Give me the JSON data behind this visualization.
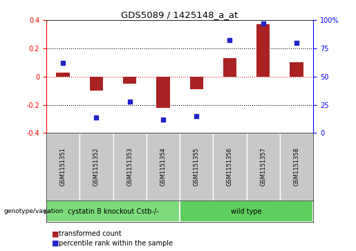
{
  "title": "GDS5089 / 1425148_a_at",
  "samples": [
    "GSM1151351",
    "GSM1151352",
    "GSM1151353",
    "GSM1151354",
    "GSM1151355",
    "GSM1151356",
    "GSM1151357",
    "GSM1151358"
  ],
  "bar_values": [
    0.03,
    -0.1,
    -0.05,
    -0.22,
    -0.09,
    0.13,
    0.37,
    0.1
  ],
  "scatter_pct": [
    62,
    14,
    28,
    12,
    15,
    82,
    97,
    80
  ],
  "bar_color": "#aa2222",
  "scatter_color": "#2222cc",
  "ylim_left": [
    -0.4,
    0.4
  ],
  "ylim_right": [
    0,
    100
  ],
  "yticks_left": [
    -0.4,
    -0.2,
    0.0,
    0.2,
    0.4
  ],
  "yticks_right": [
    0,
    25,
    50,
    75,
    100
  ],
  "ytick_left_labels": [
    "-0.4",
    "-0.2",
    "0",
    "0.2",
    "0.4"
  ],
  "ytick_right_labels": [
    "0",
    "25",
    "50",
    "75",
    "100%"
  ],
  "group1_label": "cystatin B knockout Cstb-/-",
  "group2_label": "wild type",
  "group1_indices": [
    0,
    1,
    2,
    3
  ],
  "group2_indices": [
    4,
    5,
    6,
    7
  ],
  "group1_color": "#7ddb7d",
  "group2_color": "#5ecf5e",
  "sample_box_color": "#c8c8c8",
  "group_row_label": "genotype/variation",
  "legend1_label": "transformed count",
  "legend2_label": "percentile rank within the sample",
  "hline_color": "#cc2222",
  "dot_line_color": "#000000",
  "background_color": "#ffffff"
}
